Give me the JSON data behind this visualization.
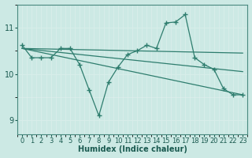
{
  "xlabel": "Humidex (Indice chaleur)",
  "ylabel": "",
  "background_color": "#cce9e4",
  "grid_color": "#b8ddd7",
  "line_color": "#2e7d6e",
  "xlim": [
    -0.5,
    23.5
  ],
  "ylim": [
    8.7,
    11.5
  ],
  "yticks": [
    9,
    10,
    11
  ],
  "xticks": [
    0,
    1,
    2,
    3,
    4,
    5,
    6,
    7,
    8,
    9,
    10,
    11,
    12,
    13,
    14,
    15,
    16,
    17,
    18,
    19,
    20,
    21,
    22,
    23
  ],
  "series": [
    {
      "x": [
        0,
        1,
        2,
        3,
        4,
        5,
        6,
        7,
        8,
        9,
        10,
        11,
        12,
        13,
        14,
        15,
        16,
        17,
        18,
        19,
        20,
        21,
        22,
        23
      ],
      "y": [
        10.62,
        10.35,
        10.35,
        10.35,
        10.55,
        10.55,
        10.2,
        9.65,
        9.1,
        9.82,
        10.15,
        10.42,
        10.5,
        10.62,
        10.55,
        11.1,
        11.12,
        11.28,
        10.35,
        10.2,
        10.1,
        9.68,
        9.55,
        9.55
      ],
      "marker": true
    },
    {
      "x": [
        0,
        23
      ],
      "y": [
        10.55,
        10.45
      ],
      "marker": false
    },
    {
      "x": [
        0,
        23
      ],
      "y": [
        10.55,
        10.05
      ],
      "marker": false
    },
    {
      "x": [
        0,
        23
      ],
      "y": [
        10.55,
        9.55
      ],
      "marker": false
    }
  ]
}
